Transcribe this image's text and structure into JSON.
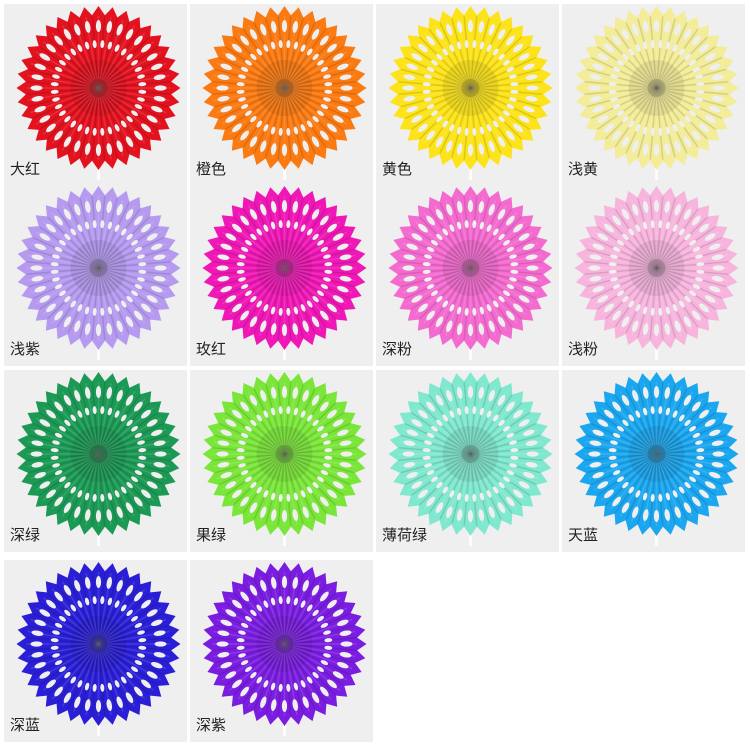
{
  "items": [
    {
      "label": "大红",
      "color": "#e3121f"
    },
    {
      "label": "橙色",
      "color": "#fb7a12"
    },
    {
      "label": "黄色",
      "color": "#fce31a"
    },
    {
      "label": "浅黄",
      "color": "#f3ec98"
    },
    {
      "label": "浅紫",
      "color": "#b59af0"
    },
    {
      "label": "玫红",
      "color": "#ef17b5"
    },
    {
      "label": "深粉",
      "color": "#f46bd0"
    },
    {
      "label": "浅粉",
      "color": "#f7b5de"
    },
    {
      "label": "深绿",
      "color": "#1c9a55"
    },
    {
      "label": "果绿",
      "color": "#7be63a"
    },
    {
      "label": "薄荷绿",
      "color": "#80e8cf"
    },
    {
      "label": "天蓝",
      "color": "#1ba7ef"
    },
    {
      "label": "深蓝",
      "color": "#2a1fd6"
    },
    {
      "label": "深紫",
      "color": "#7a1de0"
    }
  ]
}
